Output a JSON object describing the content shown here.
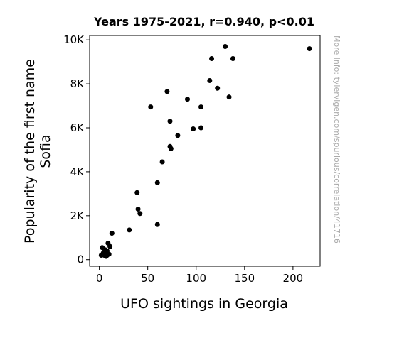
{
  "chart_data": {
    "type": "scatter",
    "title": "Years 1975-2021, r=0.940, p<0.01",
    "xlabel": "UFO sightings in Georgia",
    "ylabel_lines": [
      "Popularity of the first name",
      "Sofia"
    ],
    "side_note": "More info: tylervigen.com/spurious/correlation/41716",
    "xlim": [
      -10,
      228
    ],
    "ylim": [
      -300,
      10200
    ],
    "x_ticks": [
      {
        "value": 0,
        "label": "0"
      },
      {
        "value": 50,
        "label": "50"
      },
      {
        "value": 100,
        "label": "100"
      },
      {
        "value": 150,
        "label": "150"
      },
      {
        "value": 200,
        "label": "200"
      }
    ],
    "y_ticks": [
      {
        "value": 0,
        "label": "0"
      },
      {
        "value": 2000,
        "label": "2K"
      },
      {
        "value": 4000,
        "label": "4K"
      },
      {
        "value": 6000,
        "label": "6K"
      },
      {
        "value": 8000,
        "label": "8K"
      },
      {
        "value": 10000,
        "label": "10K"
      }
    ],
    "grid": false,
    "marker_color": "#000000",
    "points": [
      {
        "x": 2,
        "y": 200
      },
      {
        "x": 3,
        "y": 550
      },
      {
        "x": 4,
        "y": 250
      },
      {
        "x": 4,
        "y": 300
      },
      {
        "x": 5,
        "y": 200
      },
      {
        "x": 5,
        "y": 350
      },
      {
        "x": 6,
        "y": 400
      },
      {
        "x": 6,
        "y": 450
      },
      {
        "x": 7,
        "y": 150
      },
      {
        "x": 7,
        "y": 300
      },
      {
        "x": 8,
        "y": 200
      },
      {
        "x": 8,
        "y": 400
      },
      {
        "x": 9,
        "y": 750
      },
      {
        "x": 10,
        "y": 250
      },
      {
        "x": 11,
        "y": 600
      },
      {
        "x": 13,
        "y": 1200
      },
      {
        "x": 31,
        "y": 1350
      },
      {
        "x": 39,
        "y": 3050
      },
      {
        "x": 40,
        "y": 2300
      },
      {
        "x": 42,
        "y": 2100
      },
      {
        "x": 53,
        "y": 6950
      },
      {
        "x": 60,
        "y": 3500
      },
      {
        "x": 60,
        "y": 1600
      },
      {
        "x": 65,
        "y": 4450
      },
      {
        "x": 70,
        "y": 7650
      },
      {
        "x": 73,
        "y": 6300
      },
      {
        "x": 73,
        "y": 5150
      },
      {
        "x": 74,
        "y": 5050
      },
      {
        "x": 81,
        "y": 5650
      },
      {
        "x": 91,
        "y": 7300
      },
      {
        "x": 97,
        "y": 5950
      },
      {
        "x": 105,
        "y": 6000
      },
      {
        "x": 105,
        "y": 6950
      },
      {
        "x": 114,
        "y": 8150
      },
      {
        "x": 116,
        "y": 9150
      },
      {
        "x": 122,
        "y": 7800
      },
      {
        "x": 130,
        "y": 9700
      },
      {
        "x": 134,
        "y": 7400
      },
      {
        "x": 138,
        "y": 9150
      },
      {
        "x": 217,
        "y": 9600
      }
    ]
  }
}
